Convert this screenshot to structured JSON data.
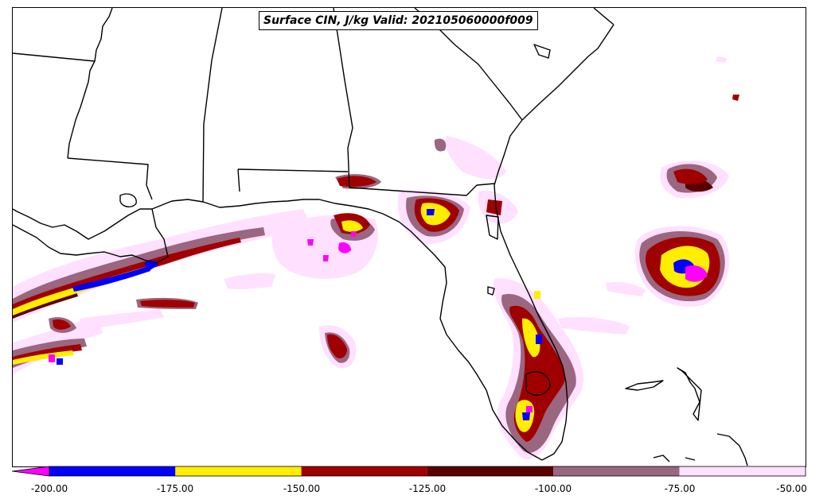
{
  "title": "Surface CIN, J/kg Valid: 202105060000f009",
  "colorbar": {
    "ticks": [
      "-200.00",
      "-175.00",
      "-150.00",
      "-125.00",
      "-100.00",
      "-75.00",
      "-50.00"
    ],
    "bins": [
      {
        "range": "< -200",
        "color": "#ff00ff"
      },
      {
        "range": "-200 to -175",
        "color": "#0000ff"
      },
      {
        "range": "-175 to -150",
        "color": "#ffee00"
      },
      {
        "range": "-150 to -125",
        "color": "#a00000"
      },
      {
        "range": "-125 to -100",
        "color": "#5a0000"
      },
      {
        "range": "-100 to -75",
        "color": "#9a6680"
      },
      {
        "range": "-75 to -50",
        "color": "#ffe0ff"
      }
    ],
    "extend": "min"
  }
}
